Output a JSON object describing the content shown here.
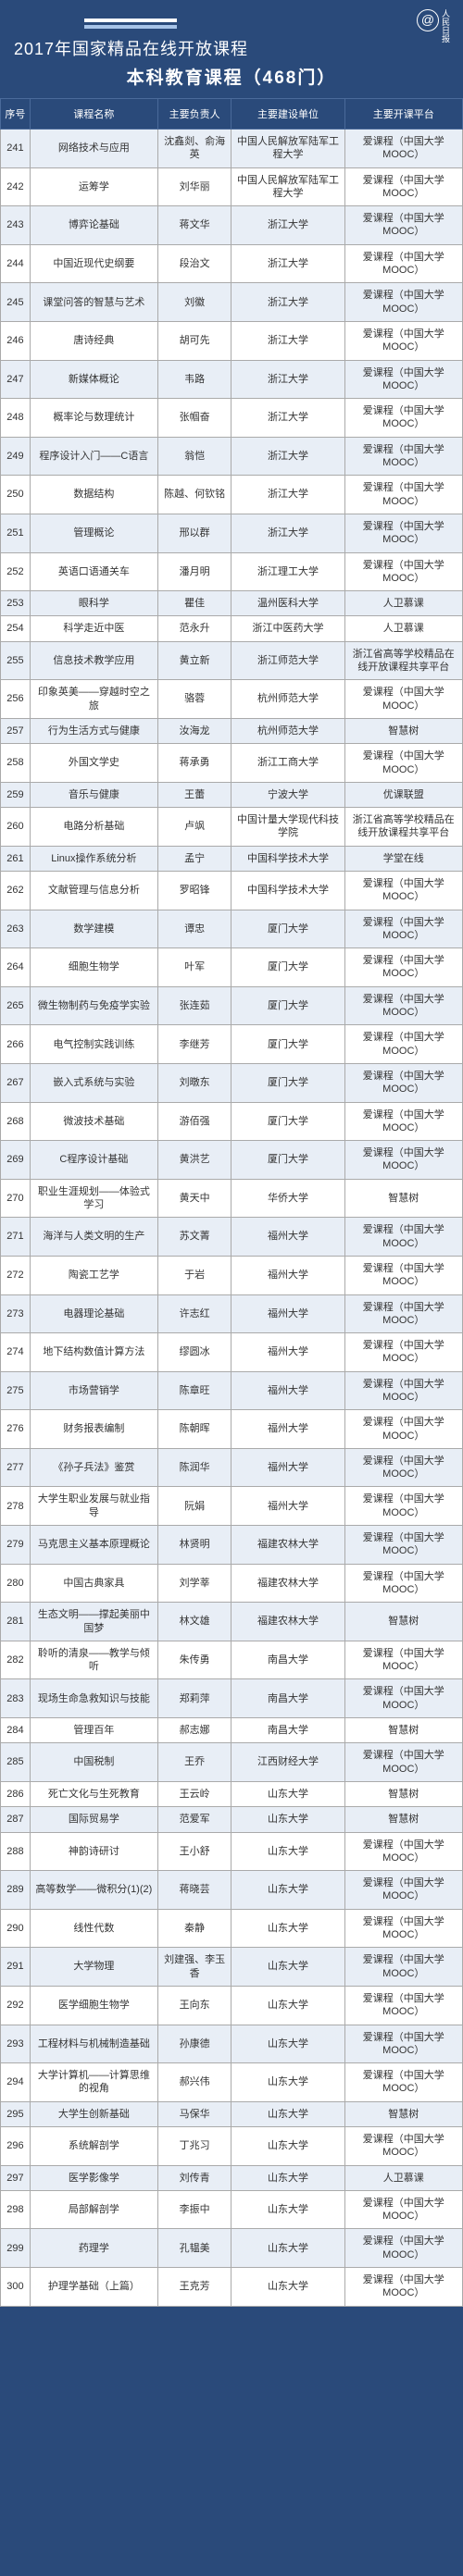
{
  "header": {
    "year": "2017",
    "title_suffix": "年国家精品在线开放课程",
    "subtitle": "本科教育课程（468门）",
    "logo_text": "人民日报"
  },
  "columns": [
    "序号",
    "课程名称",
    "主要负责人",
    "主要建设单位",
    "主要开课平台"
  ],
  "rows": [
    [
      "241",
      "网络技术与应用",
      "沈鑫剡、俞海英",
      "中国人民解放军陆军工程大学",
      "爱课程（中国大学MOOC）"
    ],
    [
      "242",
      "运筹学",
      "刘华丽",
      "中国人民解放军陆军工程大学",
      "爱课程（中国大学MOOC）"
    ],
    [
      "243",
      "博弈论基础",
      "蒋文华",
      "浙江大学",
      "爱课程（中国大学MOOC）"
    ],
    [
      "244",
      "中国近现代史纲要",
      "段治文",
      "浙江大学",
      "爱课程（中国大学MOOC）"
    ],
    [
      "245",
      "课堂问答的智慧与艺术",
      "刘徽",
      "浙江大学",
      "爱课程（中国大学MOOC）"
    ],
    [
      "246",
      "唐诗经典",
      "胡可先",
      "浙江大学",
      "爱课程（中国大学MOOC）"
    ],
    [
      "247",
      "新媒体概论",
      "韦路",
      "浙江大学",
      "爱课程（中国大学MOOC）"
    ],
    [
      "248",
      "概率论与数理统计",
      "张帼奋",
      "浙江大学",
      "爱课程（中国大学MOOC）"
    ],
    [
      "249",
      "程序设计入门——C语言",
      "翁恺",
      "浙江大学",
      "爱课程（中国大学MOOC）"
    ],
    [
      "250",
      "数据结构",
      "陈越、何钦铭",
      "浙江大学",
      "爱课程（中国大学MOOC）"
    ],
    [
      "251",
      "管理概论",
      "邢以群",
      "浙江大学",
      "爱课程（中国大学MOOC）"
    ],
    [
      "252",
      "英语口语通关车",
      "潘月明",
      "浙江理工大学",
      "爱课程（中国大学MOOC）"
    ],
    [
      "253",
      "眼科学",
      "瞿佳",
      "温州医科大学",
      "人卫慕课"
    ],
    [
      "254",
      "科学走近中医",
      "范永升",
      "浙江中医药大学",
      "人卫慕课"
    ],
    [
      "255",
      "信息技术教学应用",
      "黄立新",
      "浙江师范大学",
      "浙江省高等学校精品在线开放课程共享平台"
    ],
    [
      "256",
      "印象英美——穿越时空之旅",
      "骆蓉",
      "杭州师范大学",
      "爱课程（中国大学MOOC）"
    ],
    [
      "257",
      "行为生活方式与健康",
      "汝海龙",
      "杭州师范大学",
      "智慧树"
    ],
    [
      "258",
      "外国文学史",
      "蒋承勇",
      "浙江工商大学",
      "爱课程（中国大学MOOC）"
    ],
    [
      "259",
      "音乐与健康",
      "王蕾",
      "宁波大学",
      "优课联盟"
    ],
    [
      "260",
      "电路分析基础",
      "卢飒",
      "中国计量大学现代科技学院",
      "浙江省高等学校精品在线开放课程共享平台"
    ],
    [
      "261",
      "Linux操作系统分析",
      "孟宁",
      "中国科学技术大学",
      "学堂在线"
    ],
    [
      "262",
      "文献管理与信息分析",
      "罗昭锋",
      "中国科学技术大学",
      "爱课程（中国大学MOOC）"
    ],
    [
      "263",
      "数学建模",
      "谭忠",
      "厦门大学",
      "爱课程（中国大学MOOC）"
    ],
    [
      "264",
      "细胞生物学",
      "叶军",
      "厦门大学",
      "爱课程（中国大学MOOC）"
    ],
    [
      "265",
      "微生物制药与免疫学实验",
      "张连茹",
      "厦门大学",
      "爱课程（中国大学MOOC）"
    ],
    [
      "266",
      "电气控制实践训练",
      "李继芳",
      "厦门大学",
      "爱课程（中国大学MOOC）"
    ],
    [
      "267",
      "嵌入式系统与实验",
      "刘暾东",
      "厦门大学",
      "爱课程（中国大学MOOC）"
    ],
    [
      "268",
      "微波技术基础",
      "游佰强",
      "厦门大学",
      "爱课程（中国大学MOOC）"
    ],
    [
      "269",
      "C程序设计基础",
      "黄洪艺",
      "厦门大学",
      "爱课程（中国大学MOOC）"
    ],
    [
      "270",
      "职业生涯规划——体验式学习",
      "黄天中",
      "华侨大学",
      "智慧树"
    ],
    [
      "271",
      "海洋与人类文明的生产",
      "苏文菁",
      "福州大学",
      "爱课程（中国大学MOOC）"
    ],
    [
      "272",
      "陶瓷工艺学",
      "于岩",
      "福州大学",
      "爱课程（中国大学MOOC）"
    ],
    [
      "273",
      "电器理论基础",
      "许志红",
      "福州大学",
      "爱课程（中国大学MOOC）"
    ],
    [
      "274",
      "地下结构数值计算方法",
      "缪圆冰",
      "福州大学",
      "爱课程（中国大学MOOC）"
    ],
    [
      "275",
      "市场营销学",
      "陈章旺",
      "福州大学",
      "爱课程（中国大学MOOC）"
    ],
    [
      "276",
      "财务报表编制",
      "陈朝晖",
      "福州大学",
      "爱课程（中国大学MOOC）"
    ],
    [
      "277",
      "《孙子兵法》鉴赏",
      "陈润华",
      "福州大学",
      "爱课程（中国大学MOOC）"
    ],
    [
      "278",
      "大学生职业发展与就业指导",
      "阮娟",
      "福州大学",
      "爱课程（中国大学MOOC）"
    ],
    [
      "279",
      "马克思主义基本原理概论",
      "林贤明",
      "福建农林大学",
      "爱课程（中国大学MOOC）"
    ],
    [
      "280",
      "中国古典家具",
      "刘学莘",
      "福建农林大学",
      "爱课程（中国大学MOOC）"
    ],
    [
      "281",
      "生态文明——撑起美丽中国梦",
      "林文雄",
      "福建农林大学",
      "智慧树"
    ],
    [
      "282",
      "聆听的清泉——教学与倾听",
      "朱传勇",
      "南昌大学",
      "爱课程（中国大学MOOC）"
    ],
    [
      "283",
      "现场生命急救知识与技能",
      "郑莉萍",
      "南昌大学",
      "爱课程（中国大学MOOC）"
    ],
    [
      "284",
      "管理百年",
      "郝志娜",
      "南昌大学",
      "智慧树"
    ],
    [
      "285",
      "中国税制",
      "王乔",
      "江西财经大学",
      "爱课程（中国大学MOOC）"
    ],
    [
      "286",
      "死亡文化与生死教育",
      "王云岭",
      "山东大学",
      "智慧树"
    ],
    [
      "287",
      "国际贸易学",
      "范爱军",
      "山东大学",
      "智慧树"
    ],
    [
      "288",
      "神韵诗研讨",
      "王小舒",
      "山东大学",
      "爱课程（中国大学MOOC）"
    ],
    [
      "289",
      "高等数学——微积分(1)(2)",
      "蒋晓芸",
      "山东大学",
      "爱课程（中国大学MOOC）"
    ],
    [
      "290",
      "线性代数",
      "秦静",
      "山东大学",
      "爱课程（中国大学MOOC）"
    ],
    [
      "291",
      "大学物理",
      "刘建强、李玉香",
      "山东大学",
      "爱课程（中国大学MOOC）"
    ],
    [
      "292",
      "医学细胞生物学",
      "王向东",
      "山东大学",
      "爱课程（中国大学MOOC）"
    ],
    [
      "293",
      "工程材料与机械制造基础",
      "孙康德",
      "山东大学",
      "爱课程（中国大学MOOC）"
    ],
    [
      "294",
      "大学计算机——计算思维的视角",
      "郝兴伟",
      "山东大学",
      "爱课程（中国大学MOOC）"
    ],
    [
      "295",
      "大学生创新基础",
      "马保华",
      "山东大学",
      "智慧树"
    ],
    [
      "296",
      "系统解剖学",
      "丁兆习",
      "山东大学",
      "爱课程（中国大学MOOC）"
    ],
    [
      "297",
      "医学影像学",
      "刘传青",
      "山东大学",
      "人卫慕课"
    ],
    [
      "298",
      "局部解剖学",
      "李振中",
      "山东大学",
      "爱课程（中国大学MOOC）"
    ],
    [
      "299",
      "药理学",
      "孔韫美",
      "山东大学",
      "爱课程（中国大学MOOC）"
    ],
    [
      "300",
      "护理学基础（上篇）",
      "王克芳",
      "山东大学",
      "爱课程（中国大学MOOC）"
    ]
  ],
  "colors": {
    "header_bg": "#2a4a7a",
    "row_odd": "#e8eef6",
    "row_even": "#ffffff",
    "border": "#aaaaaa",
    "text": "#333333"
  }
}
